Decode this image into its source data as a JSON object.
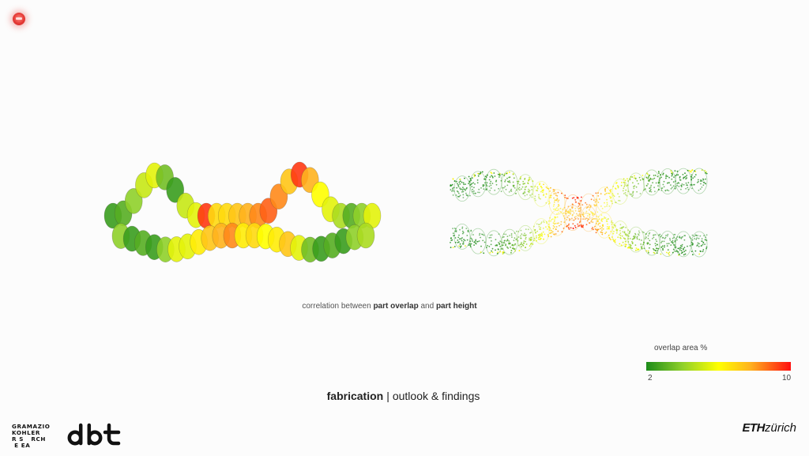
{
  "caption": {
    "prefix": "correlation between ",
    "term1": "part overlap",
    "mid": " and ",
    "term2": "part height"
  },
  "legend": {
    "title": "overlap area %",
    "min": "2",
    "max": "10",
    "colors": [
      "#1d8c1a",
      "#8fd02a",
      "#ffff00",
      "#ffb21e",
      "#ff0f0f"
    ]
  },
  "footer": {
    "bold": "fabrication",
    "separator": "|",
    "rest": "outlook & findings"
  },
  "logos": {
    "gkr_lines": [
      "GRAMAZIO",
      "KOHLER",
      "R S   RCH",
      " E EA"
    ],
    "dbt": "dbt",
    "eth_bold": "ETH",
    "eth_rest": "zürich"
  },
  "icons": {
    "record": "record-icon"
  },
  "chart_data": {
    "type": "scatter",
    "title": "",
    "legend": "overlap area %",
    "color_scale": {
      "min": 2,
      "max": 10
    },
    "parts_top_row": [
      2.5,
      3.0,
      4.0,
      5.0,
      5.5,
      3.5,
      2.5,
      5.0,
      5.5,
      9.5,
      7.0,
      7.0,
      7.5,
      8.0,
      8.5,
      9.0,
      8.5,
      7.5,
      9.5,
      8.0,
      6.0,
      5.5,
      4.5,
      3.0,
      4.0,
      5.5
    ],
    "parts_bottom_row": [
      4.0,
      2.5,
      3.0,
      2.5,
      4.0,
      5.5,
      5.5,
      6.5,
      7.5,
      8.0,
      8.5,
      6.5,
      7.0,
      6.0,
      6.5,
      7.5,
      5.5,
      3.5,
      2.5,
      3.0,
      2.5,
      4.0,
      4.5
    ]
  }
}
